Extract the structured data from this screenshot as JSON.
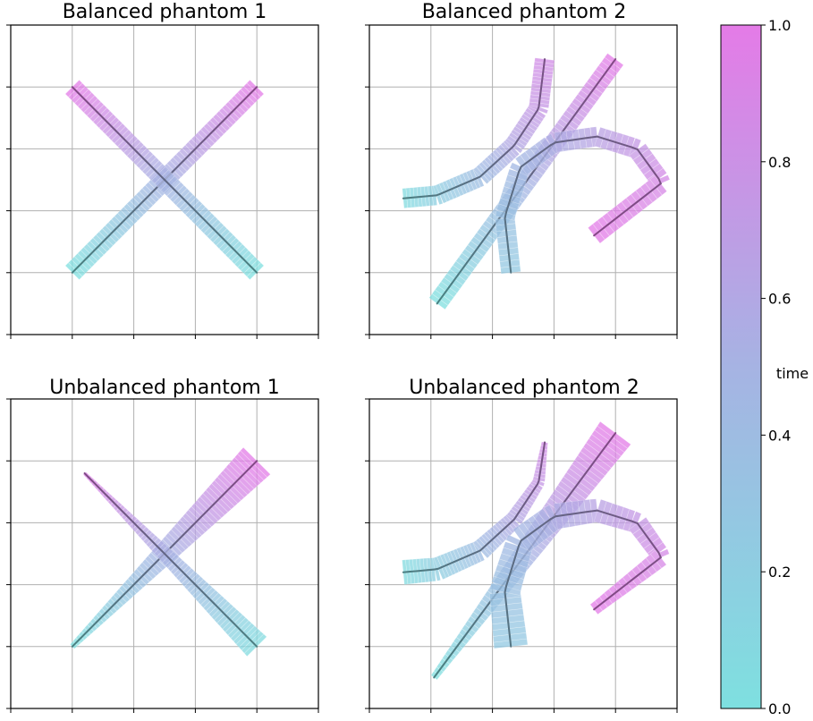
{
  "figure": {
    "colormap": [
      "#7ee0e0",
      "#a6b3e3",
      "#e47be7"
    ],
    "curve_opacity": 0.75
  },
  "chart_data": [
    {
      "type": "line",
      "title": "Balanced phantom 1",
      "xlim": [
        0,
        5
      ],
      "ylim": [
        0,
        5
      ],
      "grid": true,
      "series": [
        {
          "x": [
            1,
            4
          ],
          "y": [
            1,
            4
          ],
          "t": [
            0,
            1
          ],
          "width": [
            0.32,
            0.32
          ]
        },
        {
          "x": [
            4,
            1
          ],
          "y": [
            1,
            4
          ],
          "t": [
            0,
            1
          ],
          "width": [
            0.32,
            0.32
          ]
        }
      ]
    },
    {
      "type": "line",
      "title": "Balanced phantom 2",
      "xlim": [
        0,
        5
      ],
      "ylim": [
        0,
        5
      ],
      "grid": true,
      "series": [
        {
          "x": [
            1.1,
            4.0
          ],
          "y": [
            0.5,
            4.45
          ],
          "t": [
            0,
            1
          ],
          "width": [
            0.32,
            0.32
          ]
        },
        {
          "x": [
            0.55,
            1.1,
            1.8,
            2.35,
            2.75,
            2.85
          ],
          "y": [
            2.2,
            2.25,
            2.55,
            3.05,
            3.65,
            4.45
          ],
          "t": [
            0.05,
            0.2,
            0.4,
            0.6,
            0.75,
            0.85
          ],
          "width": [
            0.32,
            0.32,
            0.32,
            0.32,
            0.32,
            0.32
          ]
        },
        {
          "x": [
            2.3,
            2.2,
            2.45,
            3.0,
            3.7,
            4.35,
            4.75,
            3.65
          ],
          "y": [
            1.0,
            1.9,
            2.7,
            3.1,
            3.2,
            3.0,
            2.45,
            1.6
          ],
          "t": [
            0.25,
            0.35,
            0.45,
            0.55,
            0.65,
            0.75,
            0.88,
            1.0
          ],
          "width": [
            0.32,
            0.32,
            0.32,
            0.32,
            0.32,
            0.32,
            0.32,
            0.32
          ]
        }
      ]
    },
    {
      "type": "line",
      "title": "Unbalanced phantom 1",
      "xlim": [
        0,
        5
      ],
      "ylim": [
        0,
        5
      ],
      "grid": true,
      "series": [
        {
          "x": [
            1,
            4
          ],
          "y": [
            1,
            4
          ],
          "t": [
            0,
            1
          ],
          "width": [
            0.1,
            0.62
          ]
        },
        {
          "x": [
            4,
            1.2
          ],
          "y": [
            1,
            3.8
          ],
          "t": [
            0.05,
            0.95
          ],
          "width": [
            0.45,
            0.06
          ]
        }
      ]
    },
    {
      "type": "line",
      "title": "Unbalanced phantom 2",
      "xlim": [
        0,
        5
      ],
      "ylim": [
        0,
        5
      ],
      "grid": true,
      "series": [
        {
          "x": [
            1.05,
            4.0
          ],
          "y": [
            0.5,
            4.45
          ],
          "t": [
            0,
            1
          ],
          "width": [
            0.12,
            0.62
          ]
        },
        {
          "x": [
            0.55,
            1.1,
            1.8,
            2.35,
            2.75,
            2.85
          ],
          "y": [
            2.2,
            2.25,
            2.55,
            3.05,
            3.65,
            4.3
          ],
          "t": [
            0.05,
            0.2,
            0.4,
            0.6,
            0.75,
            0.85
          ],
          "width": [
            0.4,
            0.38,
            0.34,
            0.28,
            0.2,
            0.1
          ]
        },
        {
          "x": [
            2.3,
            2.2,
            2.45,
            3.0,
            3.7,
            4.35,
            4.75,
            3.65
          ],
          "y": [
            1.0,
            1.9,
            2.7,
            3.1,
            3.2,
            3.0,
            2.45,
            1.6
          ],
          "t": [
            0.25,
            0.35,
            0.45,
            0.55,
            0.65,
            0.75,
            0.88,
            1.0
          ],
          "width": [
            0.55,
            0.5,
            0.45,
            0.42,
            0.38,
            0.34,
            0.3,
            0.2
          ]
        }
      ]
    }
  ],
  "colorbar": {
    "label": "time",
    "min": 0.0,
    "max": 1.0,
    "ticks": [
      {
        "value": 0.0,
        "label": "0.0"
      },
      {
        "value": 0.2,
        "label": "0.2"
      },
      {
        "value": 0.4,
        "label": "0.4"
      },
      {
        "value": 0.6,
        "label": "0.6"
      },
      {
        "value": 0.8,
        "label": "0.8"
      },
      {
        "value": 1.0,
        "label": "1.0"
      }
    ]
  }
}
